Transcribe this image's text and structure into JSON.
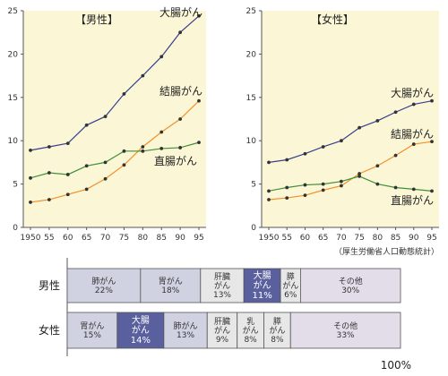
{
  "source_note": "（厚生労働省人口動態統計）",
  "colors": {
    "plot_bg": "#fbf7d6",
    "colon_series": "#3a3f8f",
    "colon_seg_fill": "#5a5f9e",
    "kecchou_series": "#f2902a",
    "chokuchou_series": "#3f8f3a",
    "lung_fill": "#d0d2e2",
    "stomach_fill": "#d0d2e2",
    "liver_fill": "#e7e7e7",
    "pancreas_fill": "#e7e7e7",
    "breast_fill": "#e7e7e7",
    "other_fill": "#e2dde8"
  },
  "chart_data": [
    {
      "type": "line",
      "title": "【男性】",
      "x": [
        "1950",
        "55",
        "60",
        "65",
        "70",
        "75",
        "80",
        "85",
        "90",
        "95"
      ],
      "ylim": [
        0,
        25
      ],
      "yticks": [
        "0",
        "5",
        "10",
        "15",
        "20",
        "25"
      ],
      "grid": false,
      "series": [
        {
          "name": "大腸がん",
          "color_key": "colon_series",
          "values": [
            8.9,
            9.3,
            9.7,
            11.8,
            12.8,
            15.4,
            17.5,
            19.7,
            22.5,
            24.4
          ]
        },
        {
          "name": "結腸がん",
          "color_key": "kecchou_series",
          "values": [
            2.9,
            3.2,
            3.8,
            4.4,
            5.6,
            7.2,
            9.3,
            11.0,
            12.5,
            14.6
          ]
        },
        {
          "name": "直腸がん",
          "color_key": "chokuchou_series",
          "values": [
            5.7,
            6.3,
            6.1,
            7.1,
            7.5,
            8.8,
            8.8,
            9.1,
            9.2,
            9.8
          ]
        }
      ]
    },
    {
      "type": "line",
      "title": "【女性】",
      "x": [
        "1950",
        "55",
        "60",
        "65",
        "70",
        "75",
        "80",
        "85",
        "90",
        "95"
      ],
      "ylim": [
        0,
        25
      ],
      "yticks": [
        "0",
        "5",
        "10",
        "15",
        "20",
        "25"
      ],
      "grid": false,
      "series": [
        {
          "name": "大腸がん",
          "color_key": "colon_series",
          "values": [
            7.5,
            7.8,
            8.5,
            9.3,
            10.0,
            11.5,
            12.3,
            13.3,
            14.2,
            14.6
          ]
        },
        {
          "name": "結腸がん",
          "color_key": "kecchou_series",
          "values": [
            3.2,
            3.4,
            3.7,
            4.3,
            4.8,
            6.2,
            7.1,
            8.3,
            9.6,
            9.9
          ]
        },
        {
          "name": "直腸がん",
          "color_key": "chokuchou_series",
          "values": [
            4.2,
            4.6,
            4.9,
            5.0,
            5.3,
            5.9,
            5.0,
            4.6,
            4.4,
            4.2
          ]
        }
      ]
    },
    {
      "type": "bar",
      "orientation": "horizontal-stacked",
      "scale_label": "100%",
      "rows": [
        {
          "label": "男性",
          "segments": [
            {
              "name": "肺がん",
              "value": 22,
              "text": [
                "肺がん",
                "22%"
              ],
              "fill": "lung_fill",
              "highlight": false
            },
            {
              "name": "胃がん",
              "value": 18,
              "text": [
                "胃がん",
                "18%"
              ],
              "fill": "stomach_fill",
              "highlight": false
            },
            {
              "name": "肝臓がん",
              "value": 13,
              "text": [
                "肝臓",
                "がん",
                "13%"
              ],
              "fill": "liver_fill",
              "highlight": false
            },
            {
              "name": "大腸がん",
              "value": 11,
              "text": [
                "大腸",
                "がん",
                "11%"
              ],
              "fill": "colon_seg_fill",
              "highlight": true
            },
            {
              "name": "膵がん",
              "value": 6,
              "text": [
                "膵",
                "がん",
                "6%"
              ],
              "fill": "pancreas_fill",
              "highlight": false
            },
            {
              "name": "その他",
              "value": 30,
              "text": [
                "その他",
                "30%"
              ],
              "fill": "other_fill",
              "highlight": false
            }
          ]
        },
        {
          "label": "女性",
          "segments": [
            {
              "name": "胃がん",
              "value": 15,
              "text": [
                "胃がん",
                "15%"
              ],
              "fill": "stomach_fill",
              "highlight": false
            },
            {
              "name": "大腸がん",
              "value": 14,
              "text": [
                "大腸",
                "がん",
                "14%"
              ],
              "fill": "colon_seg_fill",
              "highlight": true
            },
            {
              "name": "肺がん",
              "value": 13,
              "text": [
                "肺がん",
                "13%"
              ],
              "fill": "lung_fill",
              "highlight": false
            },
            {
              "name": "肝臓がん",
              "value": 9,
              "text": [
                "肝臓",
                "がん",
                "9%"
              ],
              "fill": "liver_fill",
              "highlight": false
            },
            {
              "name": "乳がん",
              "value": 8,
              "text": [
                "乳",
                "がん",
                "8%"
              ],
              "fill": "breast_fill",
              "highlight": false
            },
            {
              "name": "膵がん",
              "value": 8,
              "text": [
                "膵",
                "がん",
                "8%"
              ],
              "fill": "pancreas_fill",
              "highlight": false
            },
            {
              "name": "その他",
              "value": 33,
              "text": [
                "その他",
                "33%"
              ],
              "fill": "other_fill",
              "highlight": false
            }
          ]
        }
      ]
    }
  ]
}
